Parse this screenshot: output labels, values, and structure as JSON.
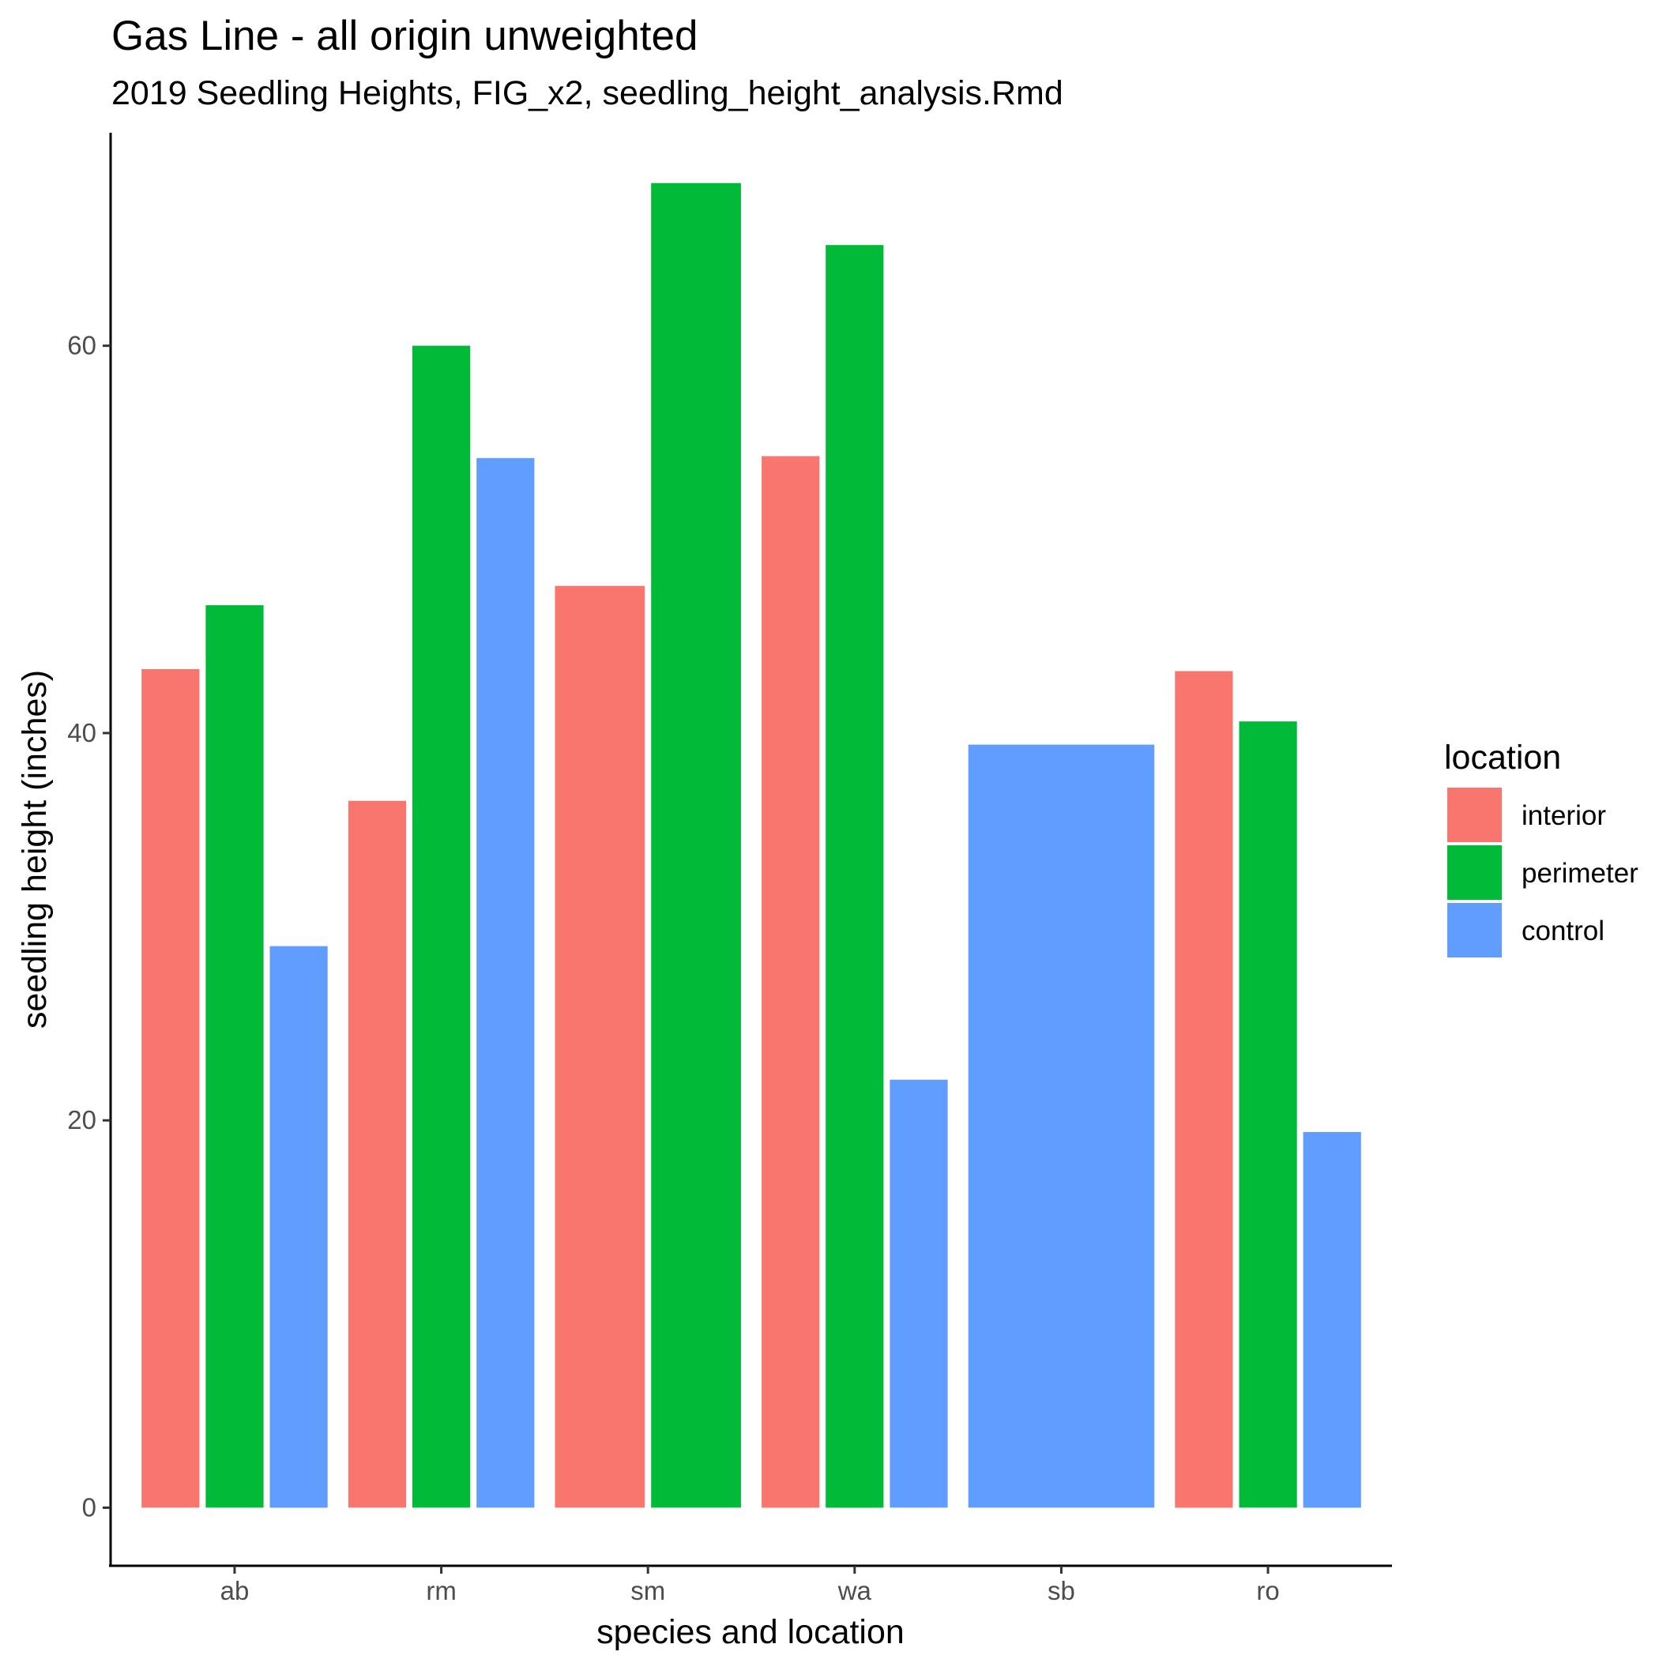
{
  "chart_data": {
    "type": "bar",
    "title": "Gas Line - all origin unweighted",
    "subtitle": "2019 Seedling Heights, FIG_x2, seedling_height_analysis.Rmd",
    "xlabel": "species and location",
    "ylabel": "seedling height (inches)",
    "categories": [
      "ab",
      "rm",
      "sm",
      "wa",
      "sb",
      "ro"
    ],
    "series": [
      {
        "name": "interior",
        "color": "#F8766D",
        "values": [
          43.3,
          36.5,
          47.6,
          54.3,
          null,
          43.2
        ]
      },
      {
        "name": "perimeter",
        "color": "#00BA38",
        "values": [
          46.6,
          60.0,
          68.4,
          65.2,
          null,
          40.6
        ]
      },
      {
        "name": "control",
        "color": "#619CFF",
        "values": [
          29.0,
          54.2,
          null,
          22.1,
          39.4,
          19.4
        ]
      }
    ],
    "ylim": [
      -3,
      71
    ],
    "yticks": [
      0,
      20,
      40,
      60
    ],
    "grid": false,
    "legend": {
      "title": "location",
      "position": "right",
      "items": [
        "interior",
        "perimeter",
        "control"
      ]
    }
  }
}
